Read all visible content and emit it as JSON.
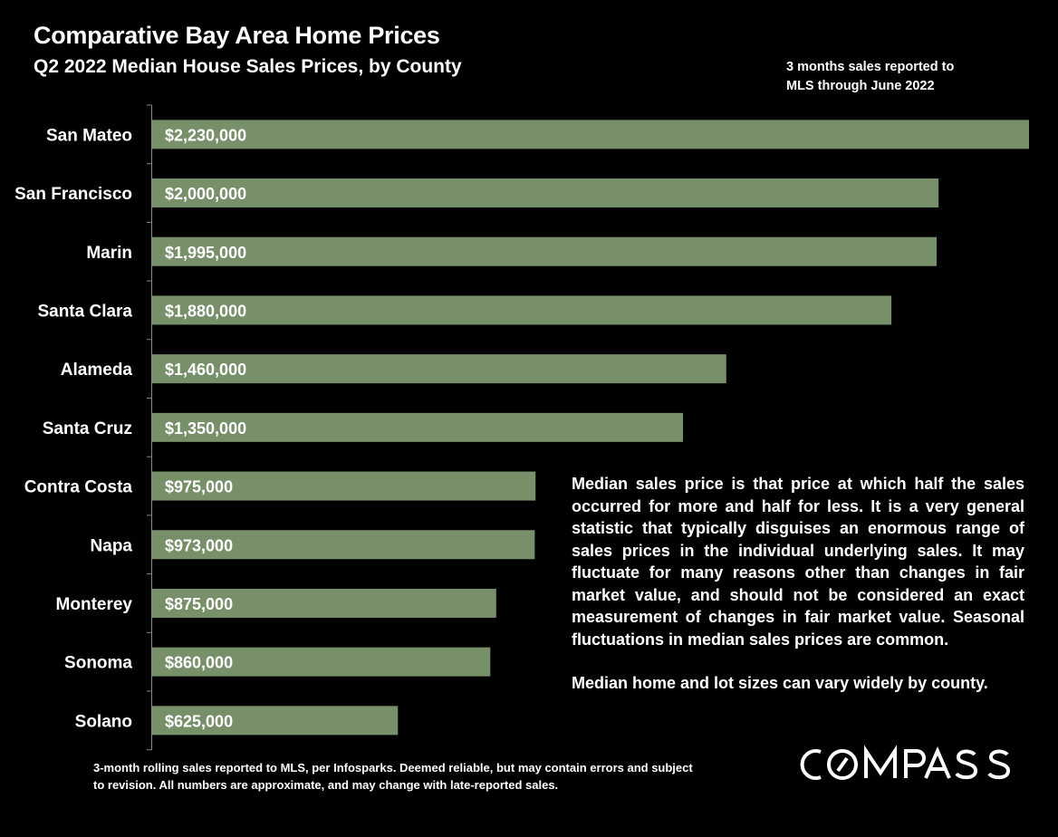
{
  "header": {
    "title": "Comparative Bay Area Home Prices",
    "subtitle": "Q2 2022 Median House Sales Prices, by County",
    "note_line1": "3 months sales reported to",
    "note_line2": "MLS through June 2022"
  },
  "chart_data": {
    "type": "bar",
    "orientation": "horizontal",
    "categories": [
      "San Mateo",
      "San Francisco",
      "Marin",
      "Santa Clara",
      "Alameda",
      "Santa Cruz",
      "Contra Costa",
      "Napa",
      "Monterey",
      "Sonoma",
      "Solano"
    ],
    "values": [
      2230000,
      2000000,
      1995000,
      1880000,
      1460000,
      1350000,
      975000,
      973000,
      875000,
      860000,
      625000
    ],
    "data_labels": [
      "$2,230,000",
      "$2,000,000",
      "$1,995,000",
      "$1,880,000",
      "$1,460,000",
      "$1,350,000",
      "$975,000",
      "$973,000",
      "$875,000",
      "$860,000",
      "$625,000"
    ],
    "xlim": [
      0,
      2230000
    ],
    "grid": false,
    "bar_color": "#77906a",
    "background": "#000000"
  },
  "description": {
    "para1": "Median sales price is that price at which half the sales occurred for more and half for less. It is a very general statistic that typically disguises an enormous range of sales prices in the individual underlying sales. It may fluctuate for many reasons other than changes in fair market value, and should not be considered an exact measurement of changes in fair market value. Seasonal fluctuations in median sales prices are common.",
    "para2": "Median home and lot sizes can vary widely by county."
  },
  "footer": {
    "line1": "3-month rolling sales reported to MLS, per Infosparks. Deemed reliable, but may contain errors and subject",
    "line2": "to revision. All numbers are approximate, and may change with late-reported sales."
  },
  "logo": {
    "text": "COMPASS"
  }
}
